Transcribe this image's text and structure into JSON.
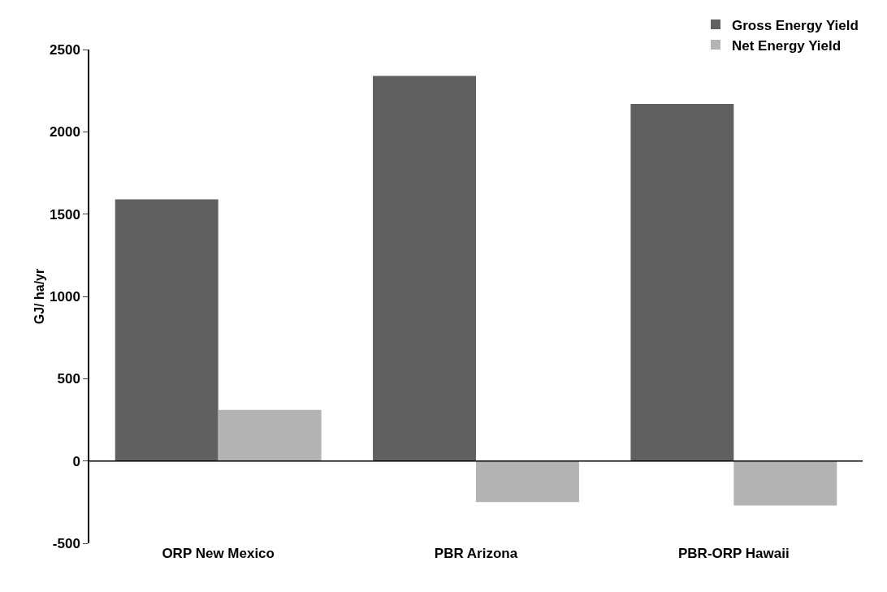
{
  "chart_data": {
    "type": "bar",
    "ylabel": "GJ/ ha/yr",
    "categories": [
      "ORP New Mexico",
      "PBR Arizona",
      "PBR-ORP Hawaii"
    ],
    "series": [
      {
        "name": "Gross Energy Yield",
        "color": "#606060",
        "values": [
          1590,
          2340,
          2170
        ]
      },
      {
        "name": "Net Energy Yield",
        "color": "#b3b3b3",
        "values": [
          310,
          -250,
          -270
        ]
      }
    ],
    "ylim": [
      -500,
      2500
    ],
    "yticks": [
      -500,
      0,
      500,
      1000,
      1500,
      2000,
      2500
    ],
    "legend": "top right"
  }
}
